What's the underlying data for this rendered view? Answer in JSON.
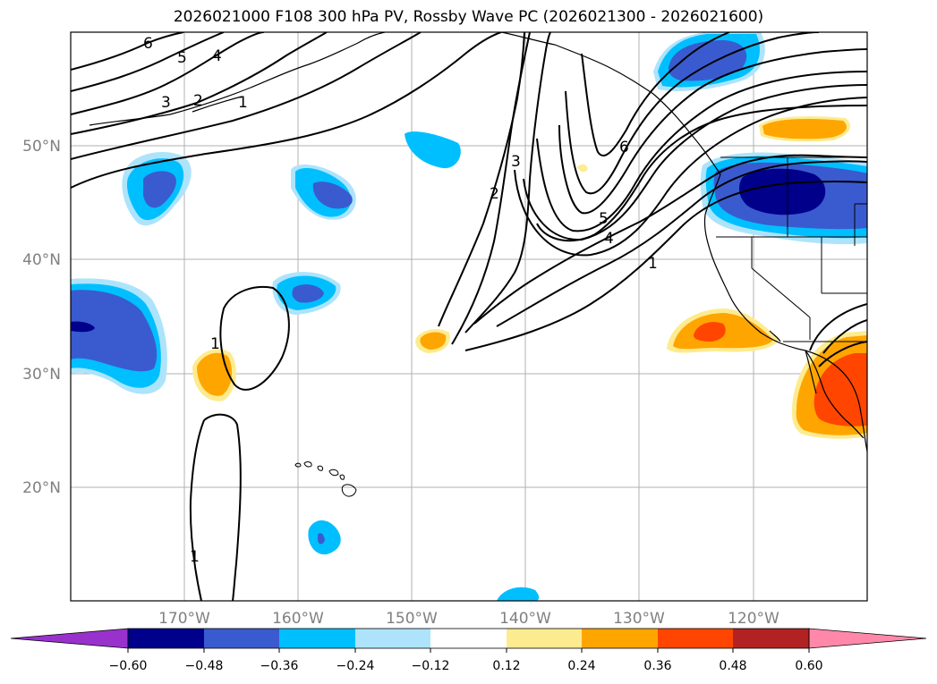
{
  "title": "2026021000 F108 300 hPa PV, Rossby Wave PC (2026021300 - 2026021600)",
  "lat_labels": [
    "50°N",
    "40°N",
    "30°N",
    "20°N"
  ],
  "lon_labels": [
    "170°W",
    "160°W",
    "150°W",
    "140°W",
    "130°W",
    "120°W"
  ],
  "contour_labels": [
    "6",
    "5",
    "4",
    "3",
    "2",
    "1",
    "2",
    "3",
    "6",
    "5",
    "4",
    "1",
    "1",
    "1"
  ],
  "colorbar": {
    "ticks": [
      "−0.60",
      "−0.48",
      "−0.36",
      "−0.24",
      "−0.12",
      "0.12",
      "0.24",
      "0.36",
      "0.48",
      "0.60"
    ],
    "colors": [
      "#9932cc",
      "#00008b",
      "#3a5bcf",
      "#00bfff",
      "#ade4fb",
      "#ffffff",
      "#fdeb8f",
      "#ffa500",
      "#ff4500",
      "#b22222",
      "#ff88aa"
    ]
  },
  "colors": {
    "neg_strong": "#00008b",
    "neg_mid": "#3a5bcf",
    "neg_light": "#00bfff",
    "neg_faint": "#ade4fb",
    "pos_faint": "#fdeb8f",
    "pos_light": "#ffa500",
    "pos_mid": "#ff4500"
  }
}
